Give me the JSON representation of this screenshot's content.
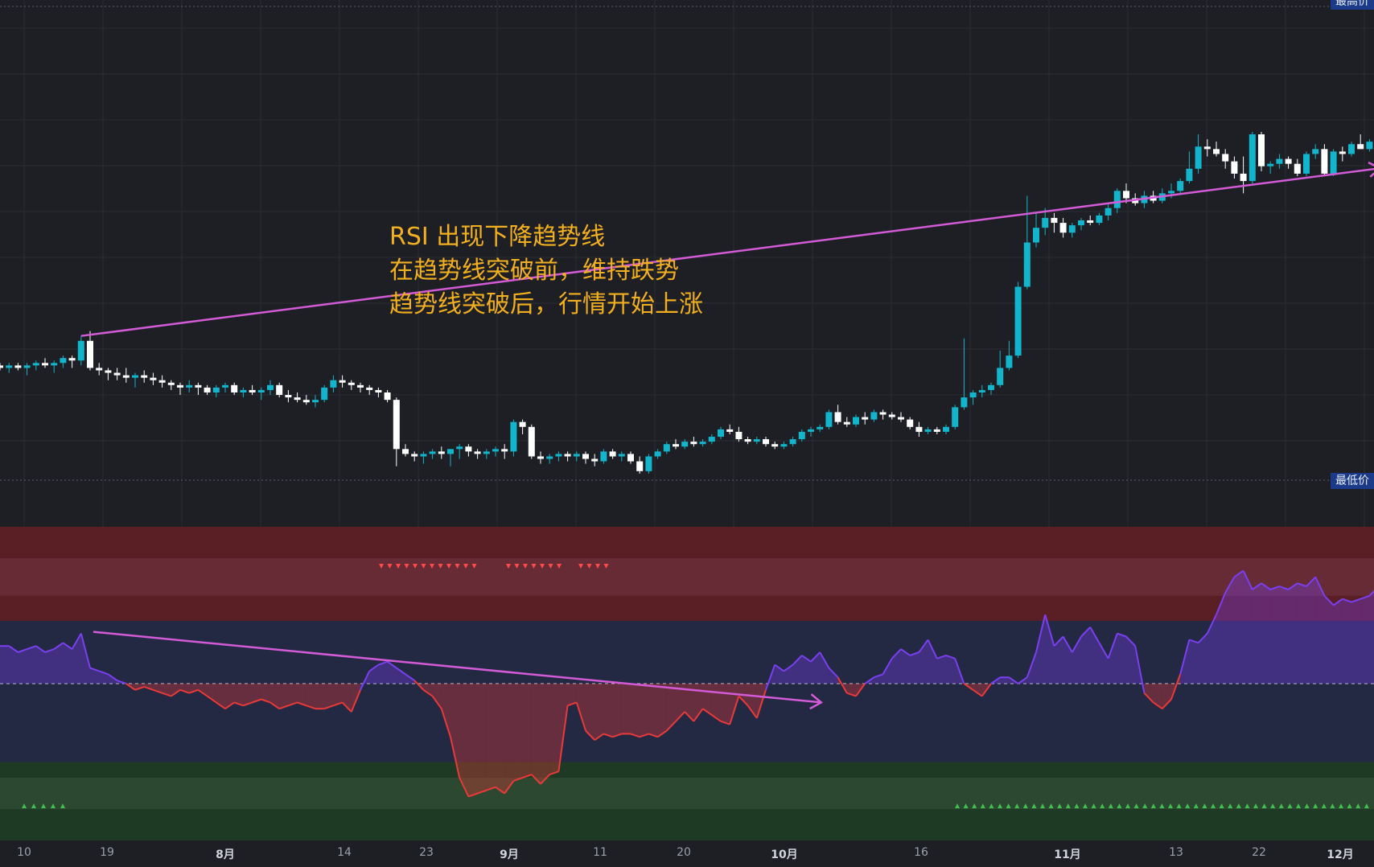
{
  "annotation": {
    "lines": [
      "RSI 出现下降趋势线",
      "在趋势线突破前，维持跌势",
      "趋势线突破后，行情开始上涨"
    ]
  },
  "price_labels": {
    "high": "最高价",
    "low": "最低价"
  },
  "colors": {
    "background": "#1e1f25",
    "candle_up": "#12b5cb",
    "candle_down": "#ffffff",
    "trendline": "#d45bd8",
    "rsi_below": "#e83a3a",
    "rsi_above": "#7a3ff0",
    "overbought_zone": "#5a1f25",
    "oversold_zone": "#1f3a24",
    "annotation": "#f2b01e",
    "signal_sell": "#ff4a4a",
    "signal_buy": "#3fbf4f"
  },
  "chart_data": [
    {
      "type": "candlestick",
      "title": "",
      "note": "relative price path (no price axis printed)",
      "ohlc": [
        [
          46,
          47,
          44,
          45
        ],
        [
          45,
          47,
          43,
          46
        ],
        [
          46,
          47,
          44,
          45
        ],
        [
          45,
          47,
          42,
          46
        ],
        [
          46,
          48,
          44,
          47
        ],
        [
          47,
          49,
          45,
          46
        ],
        [
          46,
          48,
          43,
          47
        ],
        [
          47,
          50,
          45,
          49
        ],
        [
          49,
          50,
          45,
          48
        ],
        [
          48,
          58,
          46,
          56
        ],
        [
          56,
          60,
          44,
          45
        ],
        [
          45,
          47,
          42,
          44
        ],
        [
          44,
          45,
          40,
          43
        ],
        [
          43,
          45,
          40,
          42
        ],
        [
          42,
          45,
          39,
          41
        ],
        [
          41,
          43,
          37,
          42
        ],
        [
          42,
          44,
          39,
          41
        ],
        [
          41,
          43,
          38,
          40
        ],
        [
          40,
          42,
          37,
          39
        ],
        [
          39,
          40,
          36,
          38
        ],
        [
          38,
          39,
          34,
          37
        ],
        [
          37,
          40,
          35,
          38
        ],
        [
          38,
          39,
          34,
          37
        ],
        [
          37,
          38,
          34,
          35
        ],
        [
          35,
          38,
          33,
          37
        ],
        [
          37,
          39,
          35,
          38
        ],
        [
          38,
          39,
          34,
          35
        ],
        [
          35,
          37,
          33,
          36
        ],
        [
          36,
          38,
          34,
          35
        ],
        [
          35,
          37,
          32,
          36
        ],
        [
          36,
          40,
          34,
          38
        ],
        [
          38,
          39,
          33,
          34
        ],
        [
          34,
          36,
          31,
          33
        ],
        [
          33,
          35,
          31,
          32
        ],
        [
          32,
          34,
          30,
          31
        ],
        [
          31,
          34,
          29,
          32
        ],
        [
          32,
          38,
          31,
          37
        ],
        [
          37,
          42,
          35,
          40
        ],
        [
          40,
          42,
          37,
          39
        ],
        [
          39,
          40,
          36,
          38
        ],
        [
          38,
          39,
          35,
          37
        ],
        [
          37,
          38,
          34,
          36
        ],
        [
          36,
          37,
          33,
          35
        ],
        [
          35,
          36,
          31,
          32
        ],
        [
          32,
          33,
          5,
          12
        ],
        [
          12,
          14,
          9,
          10
        ],
        [
          10,
          11,
          7,
          9
        ],
        [
          9,
          11,
          6,
          10
        ],
        [
          10,
          12,
          8,
          11
        ],
        [
          11,
          13,
          8,
          10
        ],
        [
          10,
          12,
          5,
          12
        ],
        [
          12,
          14,
          8,
          13
        ],
        [
          13,
          14,
          9,
          11
        ],
        [
          11,
          12,
          8,
          10
        ],
        [
          10,
          12,
          8,
          11
        ],
        [
          11,
          13,
          9,
          12
        ],
        [
          12,
          14,
          8,
          11
        ],
        [
          11,
          24,
          9,
          23
        ],
        [
          23,
          24,
          18,
          21
        ],
        [
          21,
          22,
          8,
          9
        ],
        [
          9,
          11,
          6,
          8
        ],
        [
          8,
          10,
          6,
          9
        ],
        [
          9,
          11,
          7,
          10
        ],
        [
          10,
          11,
          7,
          9
        ],
        [
          9,
          11,
          7,
          10
        ],
        [
          10,
          11,
          6,
          8
        ],
        [
          8,
          10,
          5,
          7
        ],
        [
          7,
          12,
          6,
          11
        ],
        [
          11,
          12,
          8,
          9
        ],
        [
          9,
          11,
          7,
          10
        ],
        [
          10,
          11,
          6,
          7
        ],
        [
          7,
          9,
          2,
          3
        ],
        [
          3,
          10,
          2,
          9
        ],
        [
          9,
          12,
          8,
          11
        ],
        [
          11,
          15,
          10,
          14
        ],
        [
          14,
          16,
          12,
          13
        ],
        [
          13,
          16,
          12,
          15
        ],
        [
          15,
          17,
          13,
          14
        ],
        [
          14,
          16,
          13,
          15
        ],
        [
          15,
          18,
          14,
          17
        ],
        [
          17,
          21,
          16,
          20
        ],
        [
          20,
          22,
          18,
          19
        ],
        [
          19,
          21,
          15,
          16
        ],
        [
          16,
          17,
          14,
          15
        ],
        [
          15,
          17,
          14,
          16
        ],
        [
          16,
          17,
          13,
          14
        ],
        [
          14,
          15,
          12,
          13
        ],
        [
          13,
          15,
          12,
          14
        ],
        [
          14,
          17,
          13,
          16
        ],
        [
          16,
          20,
          15,
          19
        ],
        [
          19,
          21,
          17,
          20
        ],
        [
          20,
          22,
          19,
          21
        ],
        [
          21,
          28,
          20,
          27
        ],
        [
          27,
          30,
          22,
          23
        ],
        [
          23,
          25,
          21,
          22
        ],
        [
          22,
          26,
          21,
          25
        ],
        [
          25,
          27,
          22,
          24
        ],
        [
          24,
          28,
          23,
          27
        ],
        [
          27,
          28,
          24,
          26
        ],
        [
          26,
          27,
          24,
          25
        ],
        [
          25,
          27,
          23,
          24
        ],
        [
          24,
          25,
          20,
          21
        ],
        [
          21,
          23,
          17,
          19
        ],
        [
          19,
          21,
          18,
          20
        ],
        [
          20,
          21,
          18,
          19
        ],
        [
          19,
          22,
          18,
          21
        ],
        [
          21,
          30,
          20,
          29
        ],
        [
          29,
          57,
          28,
          33
        ],
        [
          33,
          36,
          30,
          35
        ],
        [
          35,
          38,
          33,
          36
        ],
        [
          36,
          39,
          34,
          38
        ],
        [
          38,
          52,
          37,
          45
        ],
        [
          45,
          56,
          44,
          50
        ],
        [
          50,
          80,
          49,
          78
        ],
        [
          78,
          115,
          77,
          96
        ],
        [
          96,
          108,
          94,
          102
        ],
        [
          102,
          110,
          99,
          106
        ],
        [
          106,
          108,
          100,
          104
        ],
        [
          104,
          106,
          98,
          100
        ],
        [
          100,
          104,
          98,
          103
        ],
        [
          103,
          106,
          101,
          105
        ],
        [
          105,
          107,
          103,
          104
        ],
        [
          104,
          108,
          103,
          107
        ],
        [
          107,
          112,
          105,
          110
        ],
        [
          110,
          118,
          108,
          117
        ],
        [
          117,
          120,
          112,
          114
        ],
        [
          114,
          116,
          111,
          112
        ],
        [
          112,
          117,
          110,
          115
        ],
        [
          115,
          117,
          112,
          113
        ],
        [
          113,
          118,
          112,
          116
        ],
        [
          116,
          120,
          114,
          117
        ],
        [
          117,
          122,
          116,
          121
        ],
        [
          121,
          133,
          120,
          126
        ],
        [
          126,
          140,
          124,
          135
        ],
        [
          135,
          138,
          131,
          134
        ],
        [
          134,
          137,
          131,
          132
        ],
        [
          132,
          134,
          126,
          129
        ],
        [
          129,
          131,
          122,
          124
        ],
        [
          124,
          131,
          116,
          121
        ],
        [
          121,
          141,
          120,
          140
        ],
        [
          140,
          141,
          125,
          127
        ],
        [
          127,
          129,
          124,
          128
        ],
        [
          128,
          132,
          126,
          130
        ],
        [
          130,
          131,
          126,
          128
        ],
        [
          128,
          130,
          123,
          124
        ],
        [
          124,
          133,
          123,
          132
        ],
        [
          132,
          136,
          130,
          134
        ],
        [
          134,
          136,
          123,
          124
        ],
        [
          124,
          134,
          123,
          133
        ],
        [
          133,
          135,
          129,
          132
        ],
        [
          132,
          137,
          131,
          136
        ],
        [
          136,
          140,
          134,
          134
        ],
        [
          134,
          138,
          133,
          137
        ],
        [
          137,
          138,
          133,
          135
        ],
        [
          135,
          137,
          131,
          133
        ],
        [
          133,
          139,
          132,
          138
        ],
        [
          138,
          142,
          134,
          136
        ],
        [
          136,
          139,
          135,
          138
        ],
        [
          138,
          150,
          137,
          147
        ],
        [
          147,
          158,
          146,
          153
        ],
        [
          153,
          170,
          152,
          168
        ],
        [
          168,
          172,
          160,
          168
        ]
      ],
      "trendline": {
        "from_index": 9,
        "to_index": 146,
        "arrow": true
      }
    },
    {
      "type": "line",
      "title": "",
      "note": "RSI-style oscillator with overbought (top) and oversold (bottom) bands; midline dashed",
      "ylim": [
        0,
        100
      ],
      "midline": 50,
      "bands": {
        "overbought": [
          70,
          100
        ],
        "overbought_inner": [
          78,
          90
        ],
        "oversold": [
          0,
          25
        ],
        "oversold_inner": [
          10,
          20
        ]
      },
      "values": [
        62,
        62,
        60,
        61,
        62,
        60,
        61,
        63,
        61,
        66,
        55,
        54,
        53,
        51,
        50,
        48,
        49,
        48,
        47,
        46,
        48,
        47,
        48,
        46,
        44,
        42,
        44,
        43,
        44,
        45,
        44,
        42,
        43,
        44,
        43,
        42,
        42,
        43,
        44,
        41,
        48,
        54,
        56,
        57,
        55,
        53,
        51,
        48,
        46,
        42,
        33,
        20,
        14,
        15,
        16,
        17,
        15,
        19,
        20,
        21,
        18,
        21,
        22,
        43,
        44,
        35,
        32,
        34,
        33,
        34,
        34,
        33,
        34,
        33,
        35,
        38,
        41,
        38,
        42,
        40,
        38,
        37,
        46,
        43,
        39,
        48,
        56,
        54,
        56,
        59,
        57,
        60,
        55,
        52,
        47,
        46,
        50,
        52,
        53,
        58,
        61,
        59,
        60,
        64,
        58,
        59,
        58,
        50,
        48,
        46,
        50,
        52,
        52,
        50,
        52,
        60,
        72,
        62,
        65,
        60,
        65,
        68,
        63,
        58,
        66,
        65,
        62,
        47,
        44,
        42,
        45,
        53,
        64,
        63,
        66,
        72,
        79,
        84,
        86,
        80,
        82,
        80,
        81,
        80,
        82,
        81,
        84,
        78,
        75,
        77,
        76,
        77,
        78,
        81,
        84,
        80,
        71,
        67,
        60,
        72,
        57,
        61,
        59,
        61,
        62,
        53,
        62,
        59,
        61,
        58,
        61,
        60,
        56,
        60,
        61,
        66,
        68,
        70
      ]
    }
  ],
  "xaxis": {
    "ticks": [
      {
        "label": "10",
        "bold": false
      },
      {
        "label": "19",
        "bold": false
      },
      {
        "label": "8月",
        "bold": true
      },
      {
        "label": "14",
        "bold": false
      },
      {
        "label": "23",
        "bold": false
      },
      {
        "label": "9月",
        "bold": true
      },
      {
        "label": "11",
        "bold": false
      },
      {
        "label": "20",
        "bold": false
      },
      {
        "label": "10月",
        "bold": true
      },
      {
        "label": "16",
        "bold": false
      },
      {
        "label": "11月",
        "bold": true
      },
      {
        "label": "13",
        "bold": false
      },
      {
        "label": "22",
        "bold": false
      },
      {
        "label": "12月",
        "bold": true
      }
    ]
  }
}
